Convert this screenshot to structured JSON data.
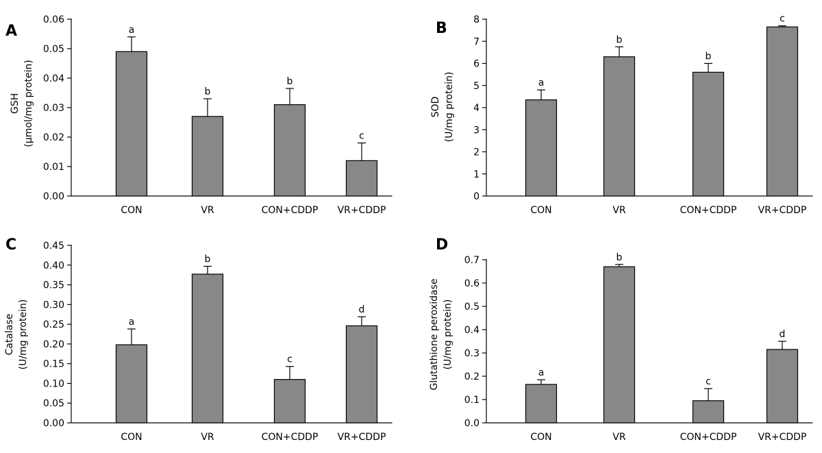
{
  "bar_color": "#888888",
  "chart_data": [
    {
      "type": "bar",
      "panel": "A",
      "categories": [
        "CON",
        "VR",
        "CON+CDDP",
        "VR+CDDP"
      ],
      "values": [
        0.049,
        0.027,
        0.031,
        0.012
      ],
      "errors": [
        0.005,
        0.006,
        0.0055,
        0.006
      ],
      "significance": [
        "a",
        "b",
        "b",
        "c"
      ],
      "ylabel": [
        "GSH",
        "(µmol/mg protein)"
      ],
      "ylim": [
        0,
        0.06
      ],
      "yticks": [
        "0.00",
        "0.01",
        "0.02",
        "0.03",
        "0.04",
        "0.05",
        "0.06"
      ],
      "title": "",
      "xlabel": ""
    },
    {
      "type": "bar",
      "panel": "B",
      "categories": [
        "CON",
        "VR",
        "CON+CDDP",
        "VR+CDDP"
      ],
      "values": [
        4.35,
        6.3,
        5.6,
        7.65
      ],
      "errors": [
        0.45,
        0.45,
        0.4,
        0.05
      ],
      "significance": [
        "a",
        "b",
        "b",
        "c"
      ],
      "ylabel": [
        "SOD",
        "(U/mg protein)"
      ],
      "ylim": [
        0,
        8
      ],
      "yticks": [
        "0",
        "1",
        "2",
        "3",
        "4",
        "5",
        "6",
        "7",
        "8"
      ],
      "title": "",
      "xlabel": ""
    },
    {
      "type": "bar",
      "panel": "C",
      "categories": [
        "CON",
        "VR",
        "CON+CDDP",
        "VR+CDDP"
      ],
      "values": [
        0.198,
        0.377,
        0.11,
        0.246
      ],
      "errors": [
        0.04,
        0.02,
        0.033,
        0.023
      ],
      "significance": [
        "a",
        "b",
        "c",
        "d"
      ],
      "ylabel": [
        "Catalase",
        "(U/mg protein)"
      ],
      "ylim": [
        0,
        0.45
      ],
      "yticks": [
        "0.00",
        "0.05",
        "0.10",
        "0.15",
        "0.20",
        "0.25",
        "0.30",
        "0.35",
        "0.40",
        "0.45"
      ],
      "title": "",
      "xlabel": ""
    },
    {
      "type": "bar",
      "panel": "D",
      "categories": [
        "CON",
        "VR",
        "CON+CDDP",
        "VR+CDDP"
      ],
      "values": [
        0.165,
        0.67,
        0.095,
        0.315
      ],
      "errors": [
        0.02,
        0.01,
        0.052,
        0.035
      ],
      "significance": [
        "a",
        "b",
        "c",
        "d"
      ],
      "ylabel": [
        "Glutathione peroxidase",
        "(U/mg protein)"
      ],
      "ylim": [
        0,
        0.7
      ],
      "yticks": [
        "0.0",
        "0.1",
        "0.2",
        "0.3",
        "0.4",
        "0.5",
        "0.6",
        "0.7"
      ],
      "title": "",
      "xlabel": ""
    }
  ]
}
